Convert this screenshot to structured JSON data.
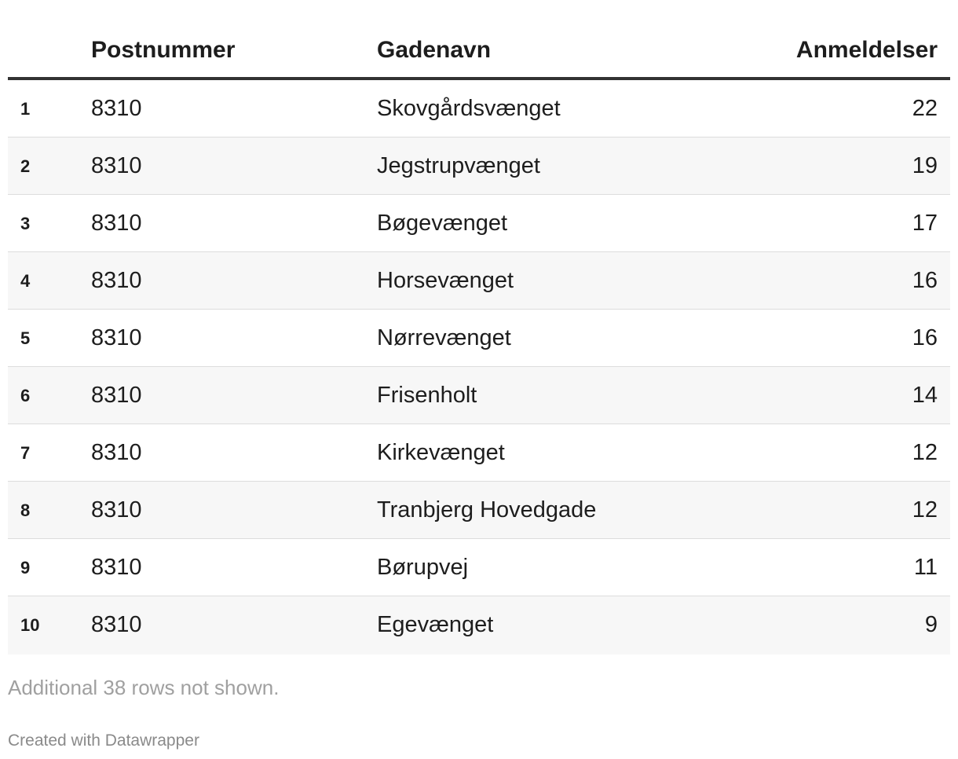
{
  "chart_data": {
    "type": "table",
    "columns": [
      "Postnummer",
      "Gadenavn",
      "Anmeldelser"
    ],
    "rows": [
      {
        "rank": "1",
        "postnummer": "8310",
        "gadenavn": "Skovgårdsvænget",
        "anmeldelser": "22"
      },
      {
        "rank": "2",
        "postnummer": "8310",
        "gadenavn": "Jegstrupvænget",
        "anmeldelser": "19"
      },
      {
        "rank": "3",
        "postnummer": "8310",
        "gadenavn": "Bøgevænget",
        "anmeldelser": "17"
      },
      {
        "rank": "4",
        "postnummer": "8310",
        "gadenavn": "Horsevænget",
        "anmeldelser": "16"
      },
      {
        "rank": "5",
        "postnummer": "8310",
        "gadenavn": "Nørrevænget",
        "anmeldelser": "16"
      },
      {
        "rank": "6",
        "postnummer": "8310",
        "gadenavn": "Frisenholt",
        "anmeldelser": "14"
      },
      {
        "rank": "7",
        "postnummer": "8310",
        "gadenavn": "Kirkevænget",
        "anmeldelser": "12"
      },
      {
        "rank": "8",
        "postnummer": "8310",
        "gadenavn": "Tranbjerg Hovedgade",
        "anmeldelser": "12"
      },
      {
        "rank": "9",
        "postnummer": "8310",
        "gadenavn": "Børupvej",
        "anmeldelser": "11"
      },
      {
        "rank": "10",
        "postnummer": "8310",
        "gadenavn": "Egevænget",
        "anmeldelser": "9"
      }
    ]
  },
  "table": {
    "header": {
      "postnummer": "Postnummer",
      "gadenavn": "Gadenavn",
      "anmeldelser": "Anmeldelser"
    }
  },
  "notes": "Additional 38 rows not shown.",
  "footer": "Created with Datawrapper",
  "colors": {
    "header_rule": "#333333",
    "alt_row": "#f7f7f7",
    "row_divider": "#dddddd",
    "muted_text": "#a0a0a0"
  }
}
